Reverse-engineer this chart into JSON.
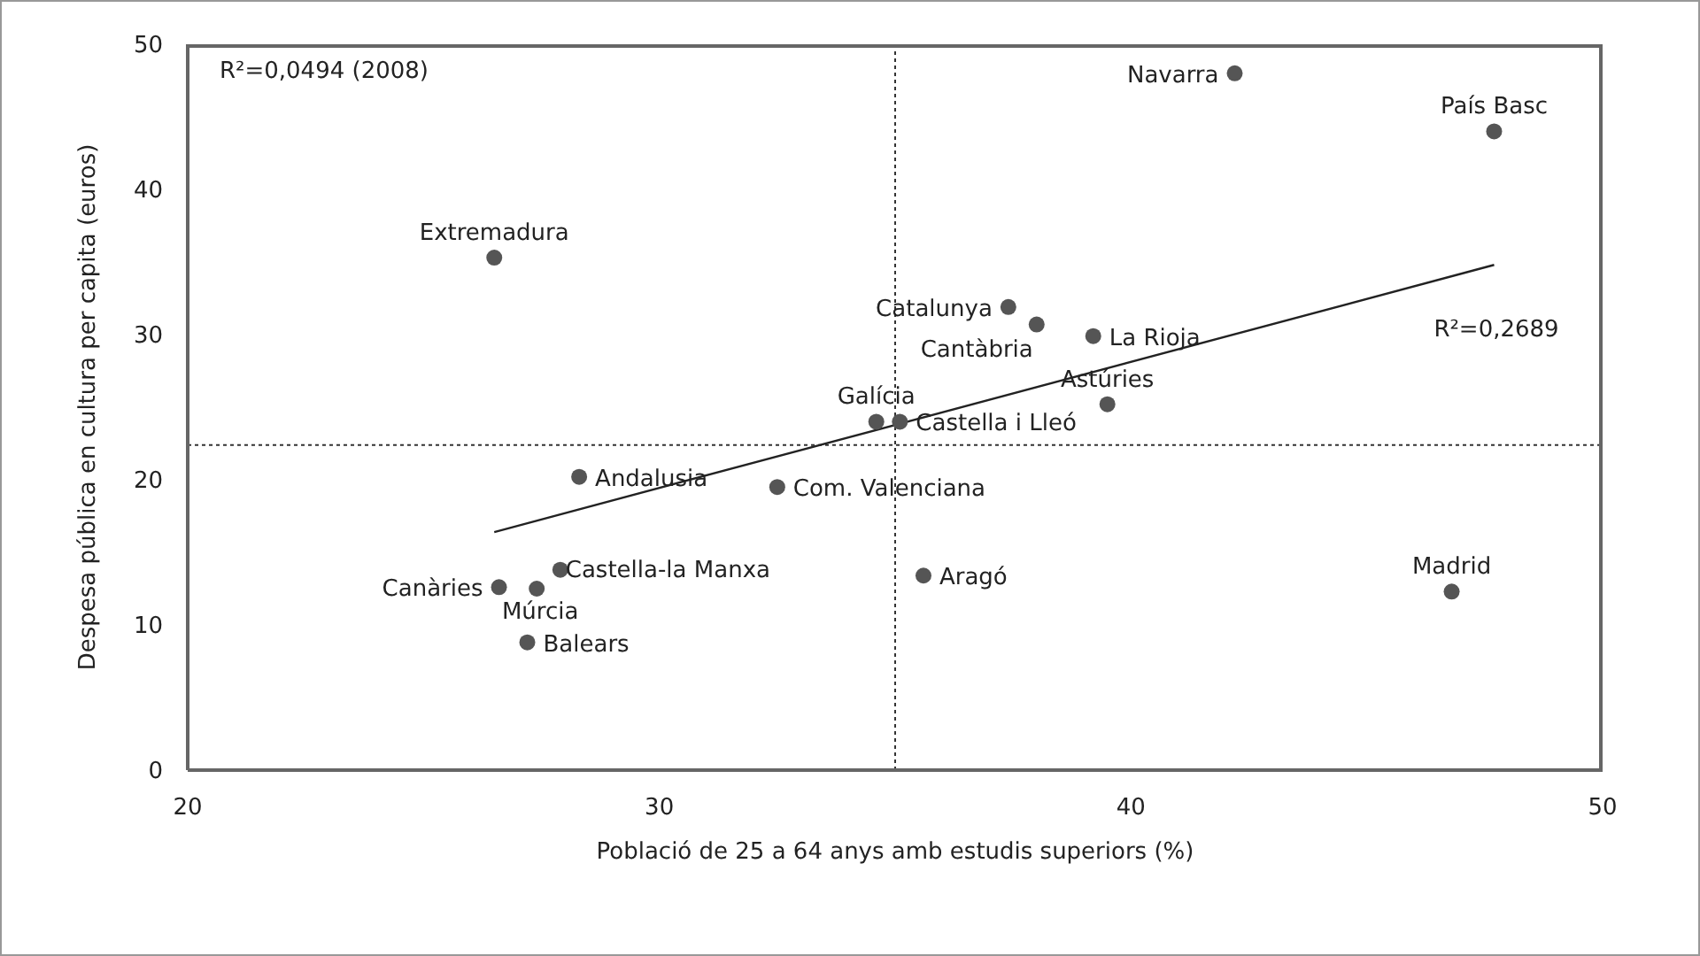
{
  "chart_data": {
    "type": "scatter",
    "xlabel": "Població de 25 a 64 anys amb estudis superiors (%)",
    "ylabel": "Despesa pública en cultura per capita (euros)",
    "xlim": [
      20,
      50
    ],
    "xticks": [
      20,
      30,
      40,
      50
    ],
    "ylim": [
      0,
      50
    ],
    "yticks": [
      0,
      10,
      20,
      30,
      40,
      50
    ],
    "grid": false,
    "legend": false,
    "marker": "circle",
    "series": [
      {
        "name": "Navarra",
        "color": "#555555",
        "x": [
          42.2
        ],
        "values": [
          48.0
        ]
      },
      {
        "name": "País Basc",
        "color": "#555555",
        "x": [
          47.7
        ],
        "values": [
          44.0
        ]
      },
      {
        "name": "Extremadura",
        "color": "#555555",
        "x": [
          26.5
        ],
        "values": [
          35.3
        ]
      },
      {
        "name": "Catalunya",
        "color": "#555555",
        "x": [
          37.4
        ],
        "values": [
          31.9
        ]
      },
      {
        "name": "Cantàbria",
        "color": "#555555",
        "x": [
          38.0
        ],
        "values": [
          30.7
        ]
      },
      {
        "name": "La Rioja",
        "color": "#555555",
        "x": [
          39.2
        ],
        "values": [
          29.9
        ]
      },
      {
        "name": "Astúries",
        "color": "#555555",
        "x": [
          39.5
        ],
        "values": [
          25.2
        ]
      },
      {
        "name": "Galícia",
        "color": "#555555",
        "x": [
          34.6
        ],
        "values": [
          24.0
        ]
      },
      {
        "name": "Castella i Lleó",
        "color": "#555555",
        "x": [
          35.1
        ],
        "values": [
          24.0
        ]
      },
      {
        "name": "Andalusia",
        "color": "#555555",
        "x": [
          28.3
        ],
        "values": [
          20.2
        ]
      },
      {
        "name": "Com. Valenciana",
        "color": "#555555",
        "x": [
          32.5
        ],
        "values": [
          19.5
        ]
      },
      {
        "name": "Aragó",
        "color": "#555555",
        "x": [
          35.6
        ],
        "values": [
          13.4
        ]
      },
      {
        "name": "Madrid",
        "color": "#555555",
        "x": [
          46.8
        ],
        "values": [
          12.3
        ]
      },
      {
        "name": "Canàries",
        "color": "#555555",
        "x": [
          26.6
        ],
        "values": [
          12.6
        ]
      },
      {
        "name": "Castella-la Manxa",
        "color": "#555555",
        "x": [
          27.9
        ],
        "values": [
          13.8
        ]
      },
      {
        "name": "Múrcia",
        "color": "#555555",
        "x": [
          27.4
        ],
        "values": [
          12.5
        ]
      },
      {
        "name": "Balears",
        "color": "#555555",
        "x": [
          27.2
        ],
        "values": [
          8.8
        ]
      },
      {
        "type": "line",
        "color": "#222222",
        "x": [
          26.5,
          47.7
        ],
        "values": [
          16.4,
          34.8
        ],
        "marker": "none",
        "line_style": "solid"
      }
    ],
    "ref_lines": [
      {
        "axis": "x",
        "value": 35,
        "color": "#333333",
        "line_style": "dotted"
      },
      {
        "axis": "y",
        "value": 22.4,
        "color": "#333333",
        "line_style": "dotted"
      }
    ],
    "annotations": [
      "R²=0,0494 (2008)",
      "R²=0,2689"
    ]
  }
}
